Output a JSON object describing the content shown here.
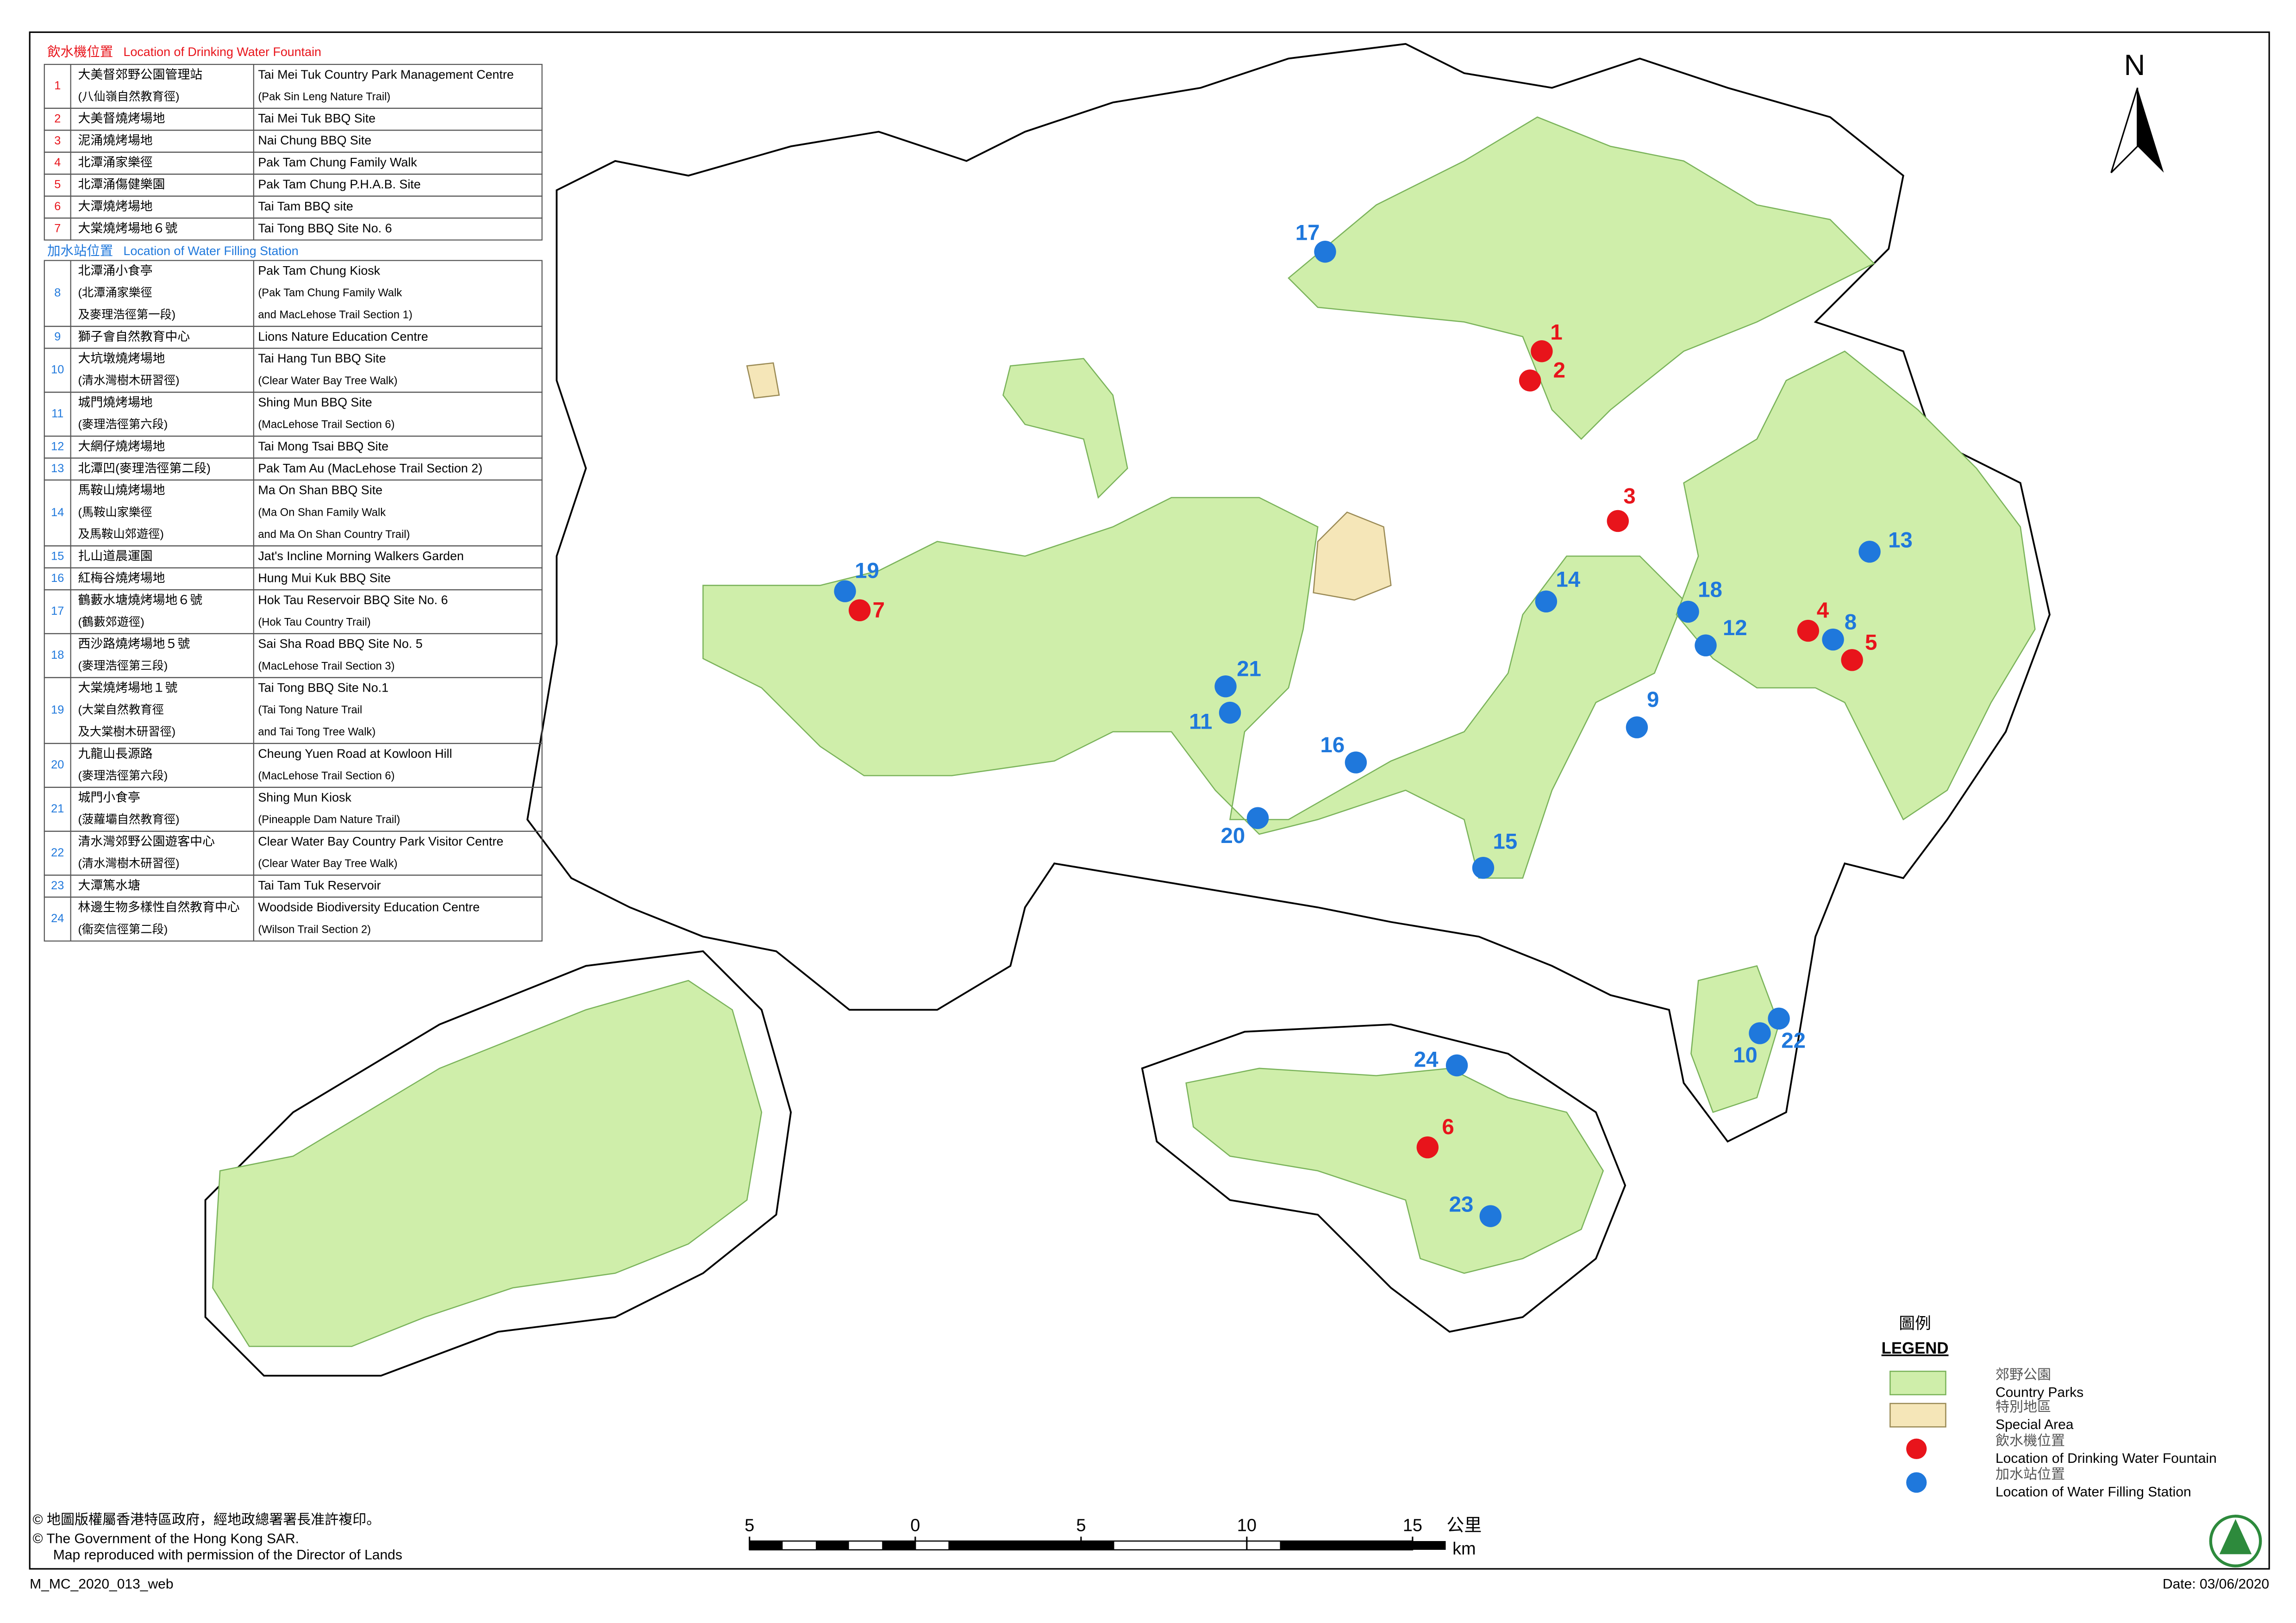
{
  "fountains": {
    "title_zh": "飲水機位置",
    "title_en": "Location of Drinking Water Fountain",
    "rows": [
      {
        "no": "1",
        "zh": [
          "大美督郊野公園管理站",
          "(八仙嶺自然教育徑)"
        ],
        "en": [
          "Tai Mei Tuk Country Park Management Centre",
          "(Pak Sin Leng Nature Trail)"
        ]
      },
      {
        "no": "2",
        "zh": [
          "大美督燒烤場地"
        ],
        "en": [
          "Tai Mei Tuk BBQ Site"
        ]
      },
      {
        "no": "3",
        "zh": [
          "泥涌燒烤場地"
        ],
        "en": [
          "Nai Chung BBQ Site"
        ]
      },
      {
        "no": "4",
        "zh": [
          "北潭涌家樂徑"
        ],
        "en": [
          "Pak Tam Chung Family Walk"
        ]
      },
      {
        "no": "5",
        "zh": [
          "北潭涌傷健樂園"
        ],
        "en": [
          "Pak Tam Chung P.H.A.B. Site"
        ]
      },
      {
        "no": "6",
        "zh": [
          "大潭燒烤場地"
        ],
        "en": [
          "Tai Tam BBQ site"
        ]
      },
      {
        "no": "7",
        "zh": [
          "大棠燒烤場地６號"
        ],
        "en": [
          "Tai Tong BBQ Site No. 6"
        ]
      }
    ]
  },
  "stations": {
    "title_zh": "加水站位置",
    "title_en": "Location of Water Filling Station",
    "rows": [
      {
        "no": "8",
        "zh": [
          "北潭涌小食亭",
          "(北潭涌家樂徑",
          "及麥理浩徑第一段)"
        ],
        "en": [
          "Pak Tam Chung Kiosk",
          "(Pak Tam Chung Family Walk",
          "and MacLehose Trail Section 1)"
        ]
      },
      {
        "no": "9",
        "zh": [
          "獅子會自然教育中心"
        ],
        "en": [
          "Lions Nature Education Centre"
        ]
      },
      {
        "no": "10",
        "zh": [
          "大坑墩燒烤場地",
          "(清水灣樹木研習徑)"
        ],
        "en": [
          "Tai Hang Tun BBQ Site",
          "(Clear Water Bay Tree Walk)"
        ]
      },
      {
        "no": "11",
        "zh": [
          "城門燒烤場地",
          "(麥理浩徑第六段)"
        ],
        "en": [
          "Shing Mun BBQ Site",
          "(MacLehose Trail Section 6)"
        ]
      },
      {
        "no": "12",
        "zh": [
          "大網仔燒烤場地"
        ],
        "en": [
          "Tai Mong Tsai BBQ Site"
        ]
      },
      {
        "no": "13",
        "zh": [
          "北潭凹(麥理浩徑第二段)"
        ],
        "en": [
          "Pak Tam Au (MacLehose Trail Section 2)"
        ]
      },
      {
        "no": "14",
        "zh": [
          "馬鞍山燒烤場地",
          "(馬鞍山家樂徑",
          "及馬鞍山郊遊徑)"
        ],
        "en": [
          "Ma On Shan BBQ Site",
          "(Ma On Shan Family Walk",
          "and Ma On Shan Country Trail)"
        ]
      },
      {
        "no": "15",
        "zh": [
          "扎山道晨運園"
        ],
        "en": [
          "Jat's Incline Morning Walkers Garden"
        ]
      },
      {
        "no": "16",
        "zh": [
          "紅梅谷燒烤場地"
        ],
        "en": [
          "Hung Mui Kuk BBQ Site"
        ]
      },
      {
        "no": "17",
        "zh": [
          "鶴藪水塘燒烤場地６號",
          "(鶴藪郊遊徑)"
        ],
        "en": [
          "Hok Tau Reservoir BBQ Site No. 6",
          "(Hok Tau Country Trail)"
        ]
      },
      {
        "no": "18",
        "zh": [
          "西沙路燒烤場地５號",
          "(麥理浩徑第三段)"
        ],
        "en": [
          "Sai Sha Road BBQ Site No. 5",
          "(MacLehose Trail Section 3)"
        ]
      },
      {
        "no": "19",
        "zh": [
          "大棠燒烤場地１號",
          "(大棠自然教育徑",
          "及大棠樹木研習徑)"
        ],
        "en": [
          "Tai Tong BBQ Site No.1",
          "(Tai Tong Nature Trail",
          "and Tai Tong Tree Walk)"
        ]
      },
      {
        "no": "20",
        "zh": [
          "九龍山長源路",
          "(麥理浩徑第六段)"
        ],
        "en": [
          "Cheung Yuen Road at Kowloon Hill",
          "(MacLehose Trail Section 6)"
        ]
      },
      {
        "no": "21",
        "zh": [
          "城門小食亭",
          "(菠蘿壩自然教育徑)"
        ],
        "en": [
          "Shing Mun Kiosk",
          "(Pineapple Dam Nature Trail)"
        ]
      },
      {
        "no": "22",
        "zh": [
          "清水灣郊野公園遊客中心",
          "(清水灣樹木研習徑)"
        ],
        "en": [
          "Clear Water Bay Country Park Visitor Centre",
          "(Clear Water Bay Tree Walk)"
        ]
      },
      {
        "no": "23",
        "zh": [
          "大潭篤水塘"
        ],
        "en": [
          "Tai Tam Tuk Reservoir"
        ]
      },
      {
        "no": "24",
        "zh": [
          "林邊生物多樣性自然教育中心",
          "(衞奕信徑第二段)"
        ],
        "en": [
          "Woodside Biodiversity Education Centre",
          "(Wilson Trail Section 2)"
        ]
      }
    ]
  },
  "markers": [
    {
      "label": "1",
      "kind": "fountain"
    },
    {
      "label": "2",
      "kind": "fountain"
    },
    {
      "label": "3",
      "kind": "fountain"
    },
    {
      "label": "4",
      "kind": "fountain"
    },
    {
      "label": "5",
      "kind": "fountain"
    },
    {
      "label": "6",
      "kind": "fountain"
    },
    {
      "label": "7",
      "kind": "fountain"
    },
    {
      "label": "8",
      "kind": "station"
    },
    {
      "label": "9",
      "kind": "station"
    },
    {
      "label": "10",
      "kind": "station"
    },
    {
      "label": "11",
      "kind": "station"
    },
    {
      "label": "12",
      "kind": "station"
    },
    {
      "label": "13",
      "kind": "station"
    },
    {
      "label": "14",
      "kind": "station"
    },
    {
      "label": "15",
      "kind": "station"
    },
    {
      "label": "16",
      "kind": "station"
    },
    {
      "label": "17",
      "kind": "station"
    },
    {
      "label": "18",
      "kind": "station"
    },
    {
      "label": "19",
      "kind": "station"
    },
    {
      "label": "20",
      "kind": "station"
    },
    {
      "label": "21",
      "kind": "station"
    },
    {
      "label": "22",
      "kind": "station"
    },
    {
      "label": "23",
      "kind": "station"
    },
    {
      "label": "24",
      "kind": "station"
    }
  ],
  "colors": {
    "fountain": "#e8141b",
    "station": "#1f78dc"
  },
  "legend": {
    "title_zh": "圖例",
    "title_en": "LEGEND",
    "items": [
      {
        "zh": "郊野公園",
        "en": "Country Parks"
      },
      {
        "zh": "特別地區",
        "en": "Special Area"
      },
      {
        "zh": "飲水機位置",
        "en": "Location of Drinking Water Fountain"
      },
      {
        "zh": "加水站位置",
        "en": "Location of Water Filling Station"
      }
    ]
  },
  "north": "N",
  "scale": {
    "ticks": [
      {
        "value": -5,
        "label": "5"
      },
      0,
      5,
      10,
      15
    ],
    "unit_zh": "公里",
    "unit_en": "km"
  },
  "copyright": [
    "© 地圖版權屬香港特區政府，經地政總署署長准許複印。",
    "© The Government of the Hong Kong SAR.",
    "Map reproduced with permission of the Director of Lands"
  ],
  "footer": {
    "left": "M_MC_2020_013_web",
    "right": "Date: 03/06/2020"
  }
}
